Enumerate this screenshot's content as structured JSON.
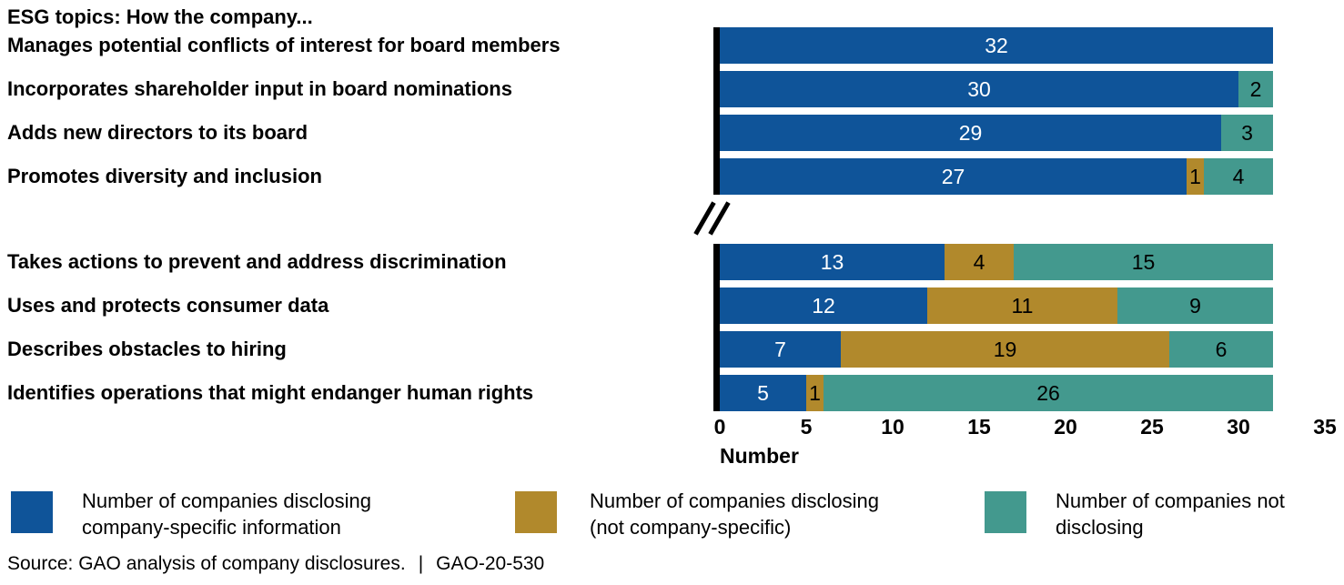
{
  "chart_data": {
    "type": "bar",
    "orientation": "horizontal",
    "stacked": true,
    "title": "ESG topics: How the company...",
    "xlabel": "Number",
    "xlim": [
      0,
      35
    ],
    "x_ticks": [
      0,
      5,
      10,
      15,
      20,
      25,
      30,
      35
    ],
    "grid": false,
    "axis_break_between_groups": true,
    "series": [
      "Number of companies disclosing company-specific information",
      "Number of companies disclosing (not company-specific)",
      "Number of companies not disclosing"
    ],
    "colors": {
      "company_specific": "#0F5499",
      "not_company_specific": "#B1892C",
      "not_disclosing": "#43998E"
    },
    "value_label_colors": [
      "#ffffff",
      "#000000",
      "#000000"
    ],
    "groups": [
      {
        "rows": [
          {
            "category": "Manages potential conflicts of interest for board members",
            "values": [
              32,
              0,
              0
            ]
          },
          {
            "category": "Incorporates shareholder input in board nominations",
            "values": [
              30,
              0,
              2
            ]
          },
          {
            "category": "Adds new directors to its board",
            "values": [
              29,
              0,
              3
            ]
          },
          {
            "category": "Promotes diversity and inclusion",
            "values": [
              27,
              1,
              4
            ]
          }
        ]
      },
      {
        "rows": [
          {
            "category": "Takes actions to prevent and address discrimination",
            "values": [
              13,
              4,
              15
            ]
          },
          {
            "category": "Uses and protects consumer data",
            "values": [
              12,
              11,
              9
            ]
          },
          {
            "category": "Describes obstacles to hiring",
            "values": [
              7,
              19,
              6
            ]
          },
          {
            "category": "Identifies operations that might endanger human rights",
            "values": [
              5,
              1,
              26
            ]
          }
        ]
      }
    ]
  },
  "legend": {
    "items": [
      {
        "line1": "Number of companies disclosing",
        "line2": "company-specific information",
        "color": "#0F5499"
      },
      {
        "line1": "Number of companies disclosing",
        "line2": "(not company-specific)",
        "color": "#B1892C"
      },
      {
        "line1": "Number of companies not",
        "line2": "disclosing",
        "color": "#43998E"
      }
    ]
  },
  "source": {
    "prefix": "Source: GAO analysis of company disclosures.",
    "separator": "|",
    "report_id": "GAO-20-530"
  }
}
